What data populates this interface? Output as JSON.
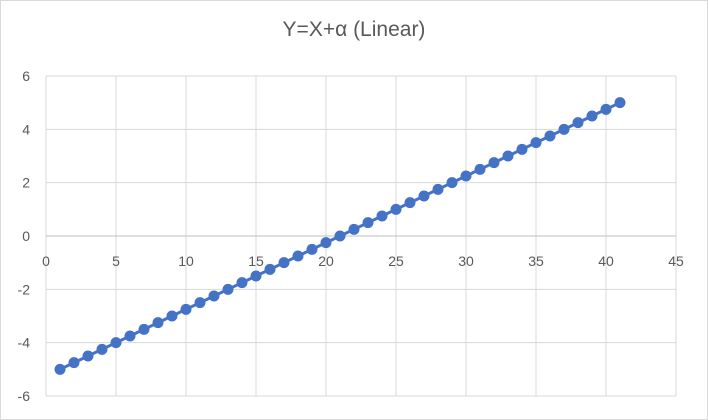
{
  "chart_data": {
    "type": "scatter",
    "title": "Y=X+α (Linear)",
    "xlim": [
      0,
      45
    ],
    "ylim": [
      -6,
      6
    ],
    "x_ticks": [
      0,
      5,
      10,
      15,
      20,
      25,
      30,
      35,
      40,
      45
    ],
    "y_ticks": [
      -6,
      -4,
      -2,
      0,
      2,
      4,
      6
    ],
    "x_tick_labels": [
      "0",
      "5",
      "10",
      "15",
      "20",
      "25",
      "30",
      "35",
      "40",
      "45"
    ],
    "y_tick_labels": [
      "-6",
      "-4",
      "-2",
      "0",
      "2",
      "4",
      "6"
    ],
    "grid": true,
    "legend": "none",
    "series": [
      {
        "color": "#4472c4",
        "points": [
          [
            1,
            -5
          ],
          [
            2,
            -4.75
          ],
          [
            3,
            -4.5
          ],
          [
            4,
            -4.25
          ],
          [
            5,
            -4
          ],
          [
            6,
            -3.75
          ],
          [
            7,
            -3.5
          ],
          [
            8,
            -3.25
          ],
          [
            9,
            -3
          ],
          [
            10,
            -2.75
          ],
          [
            11,
            -2.5
          ],
          [
            12,
            -2.25
          ],
          [
            13,
            -2
          ],
          [
            14,
            -1.75
          ],
          [
            15,
            -1.5
          ],
          [
            16,
            -1.25
          ],
          [
            17,
            -1
          ],
          [
            18,
            -0.75
          ],
          [
            19,
            -0.5
          ],
          [
            20,
            -0.25
          ],
          [
            21,
            0
          ],
          [
            22,
            0.25
          ],
          [
            23,
            0.5
          ],
          [
            24,
            0.75
          ],
          [
            25,
            1
          ],
          [
            26,
            1.25
          ],
          [
            27,
            1.5
          ],
          [
            28,
            1.75
          ],
          [
            29,
            2
          ],
          [
            30,
            2.25
          ],
          [
            31,
            2.5
          ],
          [
            32,
            2.75
          ],
          [
            33,
            3
          ],
          [
            34,
            3.25
          ],
          [
            35,
            3.5
          ],
          [
            36,
            3.75
          ],
          [
            37,
            4
          ],
          [
            38,
            4.25
          ],
          [
            39,
            4.5
          ],
          [
            40,
            4.75
          ],
          [
            41,
            5
          ]
        ]
      }
    ]
  }
}
